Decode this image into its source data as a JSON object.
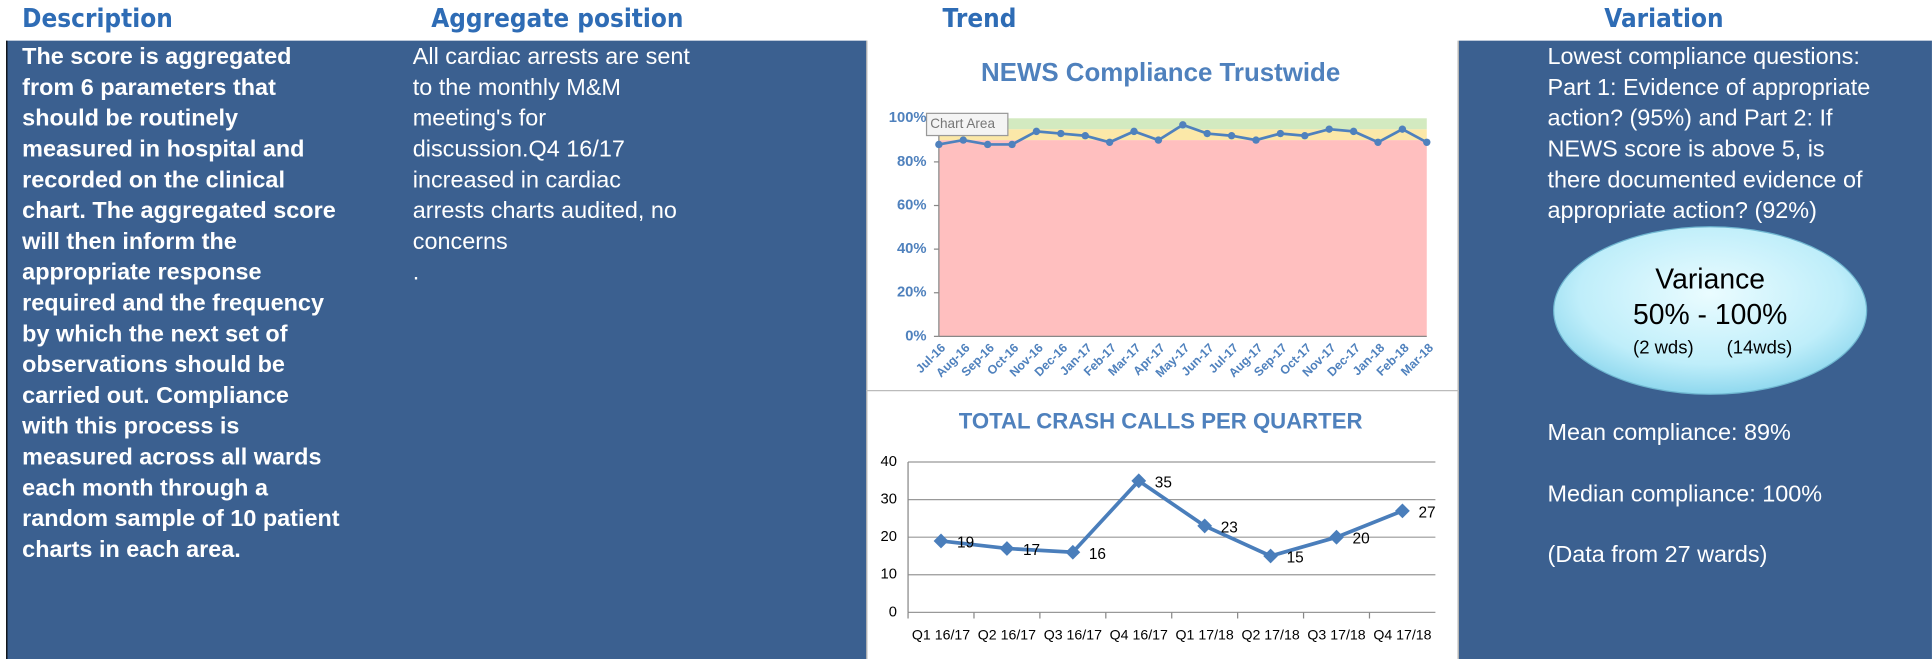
{
  "headers": [
    "Description",
    "Aggregate position",
    "Trend",
    "Variation"
  ],
  "description": [
    "The score is aggregated",
    "from 6 parameters that",
    "should be routinely",
    "measured in hospital and",
    "recorded on the clinical",
    "chart. The aggregated score",
    "will then inform the",
    "appropriate response",
    "required and the frequency",
    "by which the next set of",
    "observations should be",
    "carried out. Compliance",
    "with this process is",
    "measured across all wards",
    "each month through a",
    "random sample of 10 patient",
    "charts in each area."
  ],
  "aggregate": [
    "All cardiac arrests are sent",
    "to the monthly M&M",
    "meeting's for",
    "discussion.Q4 16/17",
    "increased in cardiac",
    "arrests charts audited, no",
    "concerns",
    "."
  ],
  "variation": {
    "lines": [
      "Lowest compliance questions:",
      "Part 1: Evidence of appropriate",
      "action? (95%) and Part 2: If",
      "NEWS score is above 5, is",
      "there documented evidence of",
      "appropriate action? (92%)"
    ],
    "bubble": {
      "title": "Variance",
      "range": "50% - 100%",
      "low": "(2 wds)",
      "high": "(14wds)"
    },
    "stats": [
      "Mean compliance: 89%",
      "Median compliance: 100%",
      "(Data from 27 wards)"
    ]
  },
  "chart_data": [
    {
      "type": "line",
      "title": "NEWS Compliance Trustwide",
      "tooltip": "Chart Area",
      "categories": [
        "Jul-16",
        "Aug-16",
        "Sep-16",
        "Oct-16",
        "Nov-16",
        "Dec-16",
        "Jan-17",
        "Feb-17",
        "Mar-17",
        "Apr-17",
        "May-17",
        "Jun-17",
        "Jul-17",
        "Aug-17",
        "Sep-17",
        "Oct-17",
        "Nov-17",
        "Dec-17",
        "Jan-18",
        "Feb-18",
        "Mar-18"
      ],
      "values": [
        88,
        90,
        88,
        88,
        94,
        93,
        92,
        89,
        94,
        90,
        97,
        93,
        92,
        90,
        93,
        92,
        95,
        94,
        89,
        95,
        89
      ],
      "color": "#4f81bd",
      "bands": [
        {
          "from": 0,
          "to": 90,
          "color": "#ffbfbf"
        },
        {
          "from": 90,
          "to": 95,
          "color": "#fbe8a8"
        },
        {
          "from": 95,
          "to": 100,
          "color": "#d3eac0"
        }
      ],
      "ylim": [
        0,
        100
      ],
      "yticks": [
        {
          "value": 0,
          "label": "0%"
        },
        {
          "value": 20,
          "label": "20%"
        },
        {
          "value": 40,
          "label": "40%"
        },
        {
          "value": 60,
          "label": "60%"
        },
        {
          "value": 80,
          "label": "80%"
        },
        {
          "value": 100,
          "label": "100%"
        }
      ]
    },
    {
      "type": "line",
      "title": "TOTAL CRASH CALLS PER QUARTER",
      "categories": [
        "Q1 16/17",
        "Q2 16/17",
        "Q3 16/17",
        "Q4 16/17",
        "Q1 17/18",
        "Q2 17/18",
        "Q3 17/18",
        "Q4 17/18"
      ],
      "values": [
        19,
        17,
        16,
        35,
        23,
        15,
        20,
        27
      ],
      "color": "#4a7ebb",
      "ylim": [
        0,
        40
      ],
      "yticks": [
        0,
        10,
        20,
        30,
        40
      ],
      "grid": true,
      "data_labels": true
    }
  ]
}
